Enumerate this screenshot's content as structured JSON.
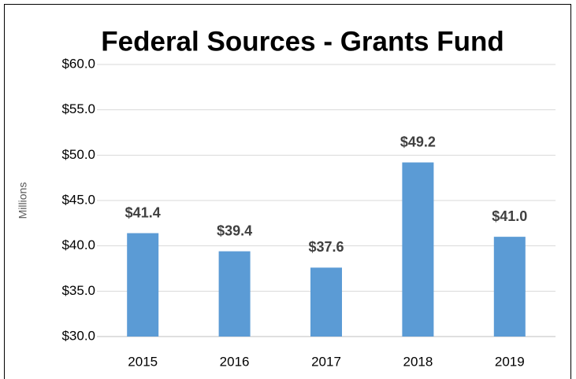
{
  "chart_data": {
    "type": "bar",
    "title": "Federal Sources - Grants Fund",
    "y_label": "Millions",
    "categories": [
      "2015",
      "2016",
      "2017",
      "2018",
      "2019"
    ],
    "values": [
      41.4,
      39.4,
      37.6,
      49.2,
      41.0
    ],
    "value_labels": [
      "$41.4",
      "$39.4",
      "$37.6",
      "$49.2",
      "$41.0"
    ],
    "color": "#5b9bd5",
    "ylim": [
      30,
      60
    ],
    "yticks": [
      {
        "value": 30,
        "label": "$30.0"
      },
      {
        "value": 35,
        "label": "$35.0"
      },
      {
        "value": 40,
        "label": "$40.0"
      },
      {
        "value": 45,
        "label": "$45.0"
      },
      {
        "value": 50,
        "label": "$50.0"
      },
      {
        "value": 55,
        "label": "$55.0"
      },
      {
        "value": 60,
        "label": "$60.0"
      }
    ],
    "grid": true
  }
}
